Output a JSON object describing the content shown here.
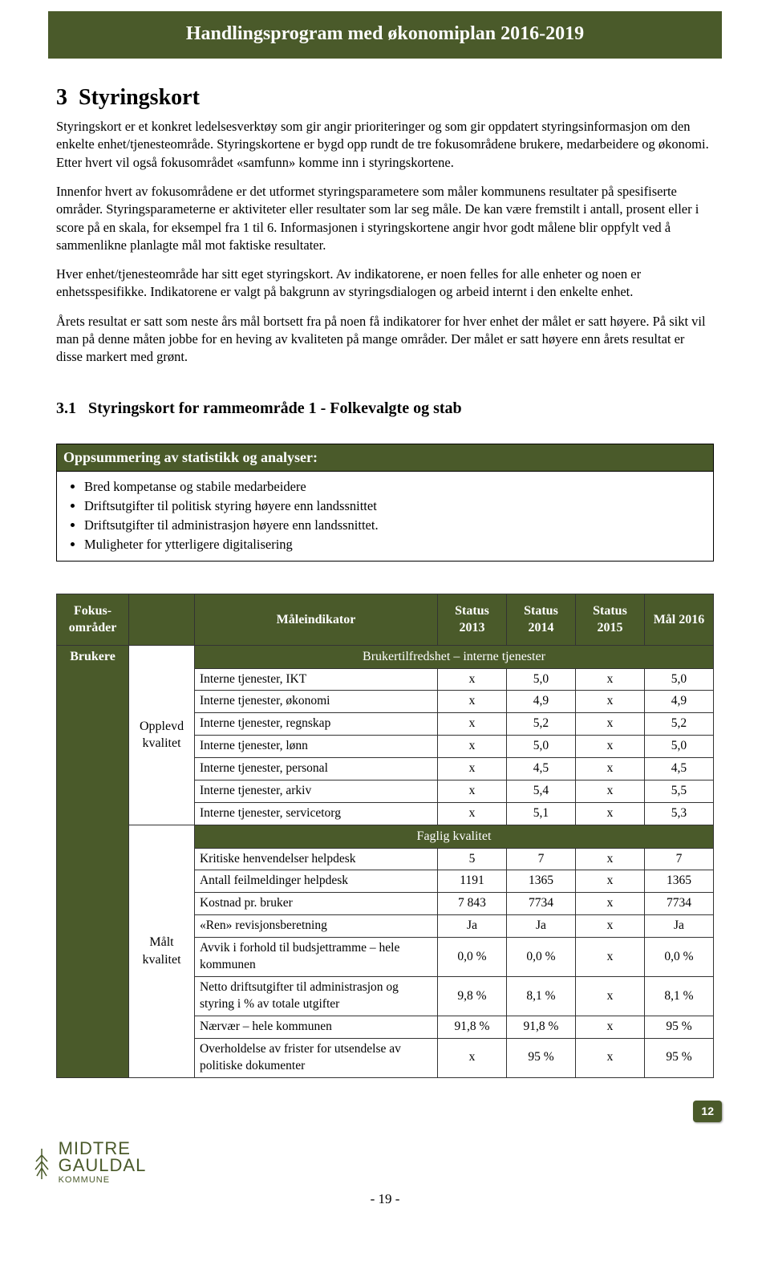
{
  "header": {
    "title": "Handlingsprogram med økonomiplan 2016-2019"
  },
  "section": {
    "number": "3",
    "title": "Styringskort",
    "p1": "Styringskort er et konkret ledelsesverktøy som gir angir prioriteringer og som gir oppdatert styringsinformasjon om den enkelte enhet/tjenesteområde. Styringskortene er bygd opp rundt de tre fokusområdene brukere, medarbeidere og økonomi. Etter hvert vil også fokusområdet «samfunn» komme inn i styringskortene.",
    "p2": "Innenfor hvert av fokusområdene er det utformet styringsparametere som måler kommunens resultater på spesifiserte områder. Styringsparameterne er aktiviteter eller resultater som lar seg måle. De kan være fremstilt i antall, prosent eller i score på en skala, for eksempel fra 1 til 6. Informasjonen i styringskortene angir hvor godt målene blir oppfylt ved å sammenlikne planlagte mål mot faktiske resultater.",
    "p3": "Hver enhet/tjenesteområde har sitt eget styringskort. Av indikatorene, er noen felles for alle enheter og noen er enhetsspesifikke. Indikatorene er valgt på bakgrunn av styringsdialogen og arbeid internt i den enkelte enhet.",
    "p4": "Årets resultat er satt som neste års mål bortsett fra på noen få indikatorer for hver enhet der målet er satt høyere. På sikt vil man på denne måten jobbe for en heving av kvaliteten på mange områder. Der målet er satt høyere enn årets resultat er disse markert med grønt."
  },
  "subsection": {
    "number": "3.1",
    "title": "Styringskort for rammeområde 1 - Folkevalgte og stab"
  },
  "summary": {
    "header": "Oppsummering av statistikk og analyser:",
    "items": [
      "Bred kompetanse og stabile medarbeidere",
      "Driftsutgifter til politisk styring høyere enn landssnittet",
      "Driftsutgifter til administrasjon høyere enn landssnittet.",
      "Muligheter for ytterligere digitalisering"
    ]
  },
  "table": {
    "columns": {
      "c0": "Fokus-områder",
      "c1": "",
      "c2": "Måleindikator",
      "c3": "Status 2013",
      "c4": "Status 2014",
      "c5": "Status 2015",
      "c6": "Mål 2016"
    },
    "group_label": "Brukere",
    "cat1": "Opplevd kvalitet",
    "cat2": "Målt kvalitet",
    "section1": "Brukertilfredshet – interne tjenester",
    "section2": "Faglig kvalitet",
    "rows_sec1": [
      {
        "ind": "Interne tjenester, IKT",
        "v13": "x",
        "v14": "5,0",
        "v15": "x",
        "v16": "5,0"
      },
      {
        "ind": "Interne tjenester, økonomi",
        "v13": "x",
        "v14": "4,9",
        "v15": "x",
        "v16": "4,9"
      },
      {
        "ind": "Interne tjenester, regnskap",
        "v13": "x",
        "v14": "5,2",
        "v15": "x",
        "v16": "5,2"
      },
      {
        "ind": "Interne tjenester, lønn",
        "v13": "x",
        "v14": "5,0",
        "v15": "x",
        "v16": "5,0"
      },
      {
        "ind": "Interne tjenester, personal",
        "v13": "x",
        "v14": "4,5",
        "v15": "x",
        "v16": "4,5"
      },
      {
        "ind": "Interne tjenester, arkiv",
        "v13": "x",
        "v14": "5,4",
        "v15": "x",
        "v16": "5,5"
      },
      {
        "ind": "Interne tjenester, servicetorg",
        "v13": "x",
        "v14": "5,1",
        "v15": "x",
        "v16": "5,3"
      }
    ],
    "rows_sec2": [
      {
        "ind": "Kritiske henvendelser helpdesk",
        "v13": "5",
        "v14": "7",
        "v15": "x",
        "v16": "7"
      },
      {
        "ind": "Antall feilmeldinger helpdesk",
        "v13": "1191",
        "v14": "1365",
        "v15": "x",
        "v16": "1365"
      },
      {
        "ind": "Kostnad pr. bruker",
        "v13": "7 843",
        "v14": "7734",
        "v15": "x",
        "v16": "7734"
      },
      {
        "ind": "«Ren» revisjonsberetning",
        "v13": "Ja",
        "v14": "Ja",
        "v15": "x",
        "v16": "Ja"
      },
      {
        "ind": "Avvik i forhold til budsjettramme – hele kommunen",
        "v13": "0,0 %",
        "v14": "0,0 %",
        "v15": "x",
        "v16": "0,0 %"
      },
      {
        "ind": "Netto driftsutgifter til administrasjon og styring i % av totale utgifter",
        "v13": "9,8 %",
        "v14": "8,1 %",
        "v15": "x",
        "v16": "8,1 %"
      },
      {
        "ind": "Nærvær – hele kommunen",
        "v13": "91,8 %",
        "v14": "91,8 %",
        "v15": "x",
        "v16": "95 %"
      },
      {
        "ind": "Overholdelse av frister for utsendelse av politiske dokumenter",
        "v13": "x",
        "v14": "95 %",
        "v15": "x",
        "v16": "95 %"
      }
    ]
  },
  "page": {
    "badge": "12",
    "bottom": "- 19 -"
  },
  "logo": {
    "line1": "MIDTRE",
    "line2": "GAULDAL",
    "sub": "KOMMUNE"
  },
  "colors": {
    "olive": "#4a5a2a",
    "white": "#ffffff",
    "black": "#000000"
  }
}
